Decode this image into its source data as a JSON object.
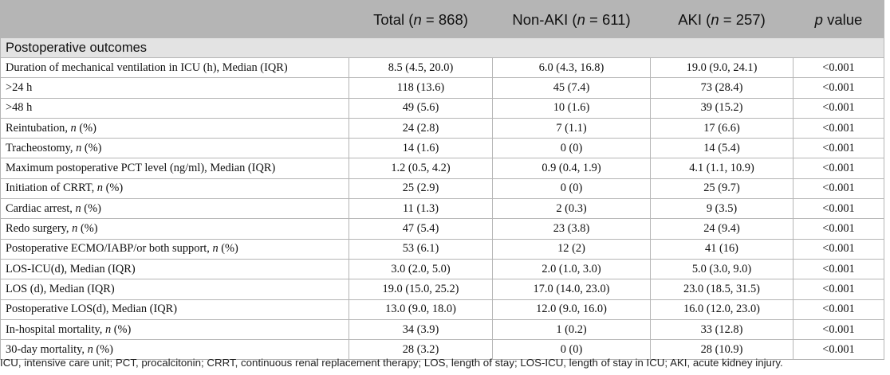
{
  "header": {
    "col0": "",
    "total_pre": "Total (",
    "total_n": "n",
    "total_post": " = 868)",
    "nonaki_pre": "Non-AKI (",
    "nonaki_n": "n",
    "nonaki_post": " = 611)",
    "aki_pre": "AKI (",
    "aki_n": "n",
    "aki_post": " = 257)",
    "p_italic": "p",
    "p_post": " value"
  },
  "section_title": "Postoperative outcomes",
  "rows": [
    {
      "label_pre": "Duration of mechanical ventilation in ICU (h), Median (IQR)",
      "label_it": "",
      "label_post": "",
      "total": "8.5 (4.5, 20.0)",
      "nonaki": "6.0 (4.3, 16.8)",
      "aki": "19.0 (9.0, 24.1)",
      "p": "<0.001"
    },
    {
      "label_pre": ">24 h",
      "label_it": "",
      "label_post": "",
      "total": "118 (13.6)",
      "nonaki": "45 (7.4)",
      "aki": "73 (28.4)",
      "p": "<0.001"
    },
    {
      "label_pre": ">48 h",
      "label_it": "",
      "label_post": "",
      "total": "49 (5.6)",
      "nonaki": "10 (1.6)",
      "aki": "39 (15.2)",
      "p": "<0.001"
    },
    {
      "label_pre": "Reintubation, ",
      "label_it": "n",
      "label_post": " (%)",
      "total": "24 (2.8)",
      "nonaki": "7 (1.1)",
      "aki": "17 (6.6)",
      "p": "<0.001"
    },
    {
      "label_pre": "Tracheostomy, ",
      "label_it": "n",
      "label_post": " (%)",
      "total": "14 (1.6)",
      "nonaki": "0 (0)",
      "aki": "14 (5.4)",
      "p": "<0.001"
    },
    {
      "label_pre": "Maximum postoperative PCT level (ng/ml), Median (IQR)",
      "label_it": "",
      "label_post": "",
      "total": "1.2 (0.5, 4.2)",
      "nonaki": "0.9 (0.4, 1.9)",
      "aki": "4.1 (1.1, 10.9)",
      "p": "<0.001"
    },
    {
      "label_pre": "Initiation of CRRT, ",
      "label_it": "n",
      "label_post": " (%)",
      "total": "25 (2.9)",
      "nonaki": "0 (0)",
      "aki": "25 (9.7)",
      "p": "<0.001"
    },
    {
      "label_pre": "Cardiac arrest, ",
      "label_it": "n",
      "label_post": " (%)",
      "total": "11 (1.3)",
      "nonaki": "2 (0.3)",
      "aki": "9 (3.5)",
      "p": "<0.001"
    },
    {
      "label_pre": "Redo surgery, ",
      "label_it": "n",
      "label_post": " (%)",
      "total": "47 (5.4)",
      "nonaki": "23 (3.8)",
      "aki": "24 (9.4)",
      "p": "<0.001"
    },
    {
      "label_pre": "Postoperative ECMO/IABP/or both support, ",
      "label_it": "n",
      "label_post": " (%)",
      "total": "53 (6.1)",
      "nonaki": "12 (2)",
      "aki": "41 (16)",
      "p": "<0.001"
    },
    {
      "label_pre": "LOS-ICU(d), Median (IQR)",
      "label_it": "",
      "label_post": "",
      "total": "3.0 (2.0, 5.0)",
      "nonaki": "2.0 (1.0, 3.0)",
      "aki": "5.0 (3.0, 9.0)",
      "p": "<0.001"
    },
    {
      "label_pre": "LOS (d), Median (IQR)",
      "label_it": "",
      "label_post": "",
      "total": "19.0 (15.0, 25.2)",
      "nonaki": "17.0 (14.0, 23.0)",
      "aki": "23.0 (18.5, 31.5)",
      "p": "<0.001"
    },
    {
      "label_pre": "Postoperative LOS(d), Median (IQR)",
      "label_it": "",
      "label_post": "",
      "total": "13.0 (9.0, 18.0)",
      "nonaki": "12.0 (9.0, 16.0)",
      "aki": "16.0 (12.0, 23.0)",
      "p": "<0.001"
    },
    {
      "label_pre": "In-hospital mortality, ",
      "label_it": "n",
      "label_post": " (%)",
      "total": "34 (3.9)",
      "nonaki": "1 (0.2)",
      "aki": "33 (12.8)",
      "p": "<0.001"
    },
    {
      "label_pre": "30-day mortality, ",
      "label_it": "n",
      "label_post": " (%)",
      "total": "28 (3.2)",
      "nonaki": "0 (0)",
      "aki": "28 (10.9)",
      "p": "<0.001"
    }
  ],
  "footnote": "ICU, intensive care unit; PCT, procalcitonin; CRRT, continuous renal replacement therapy; LOS, length of stay; LOS-ICU, length of stay in ICU; AKI, acute kidney injury."
}
